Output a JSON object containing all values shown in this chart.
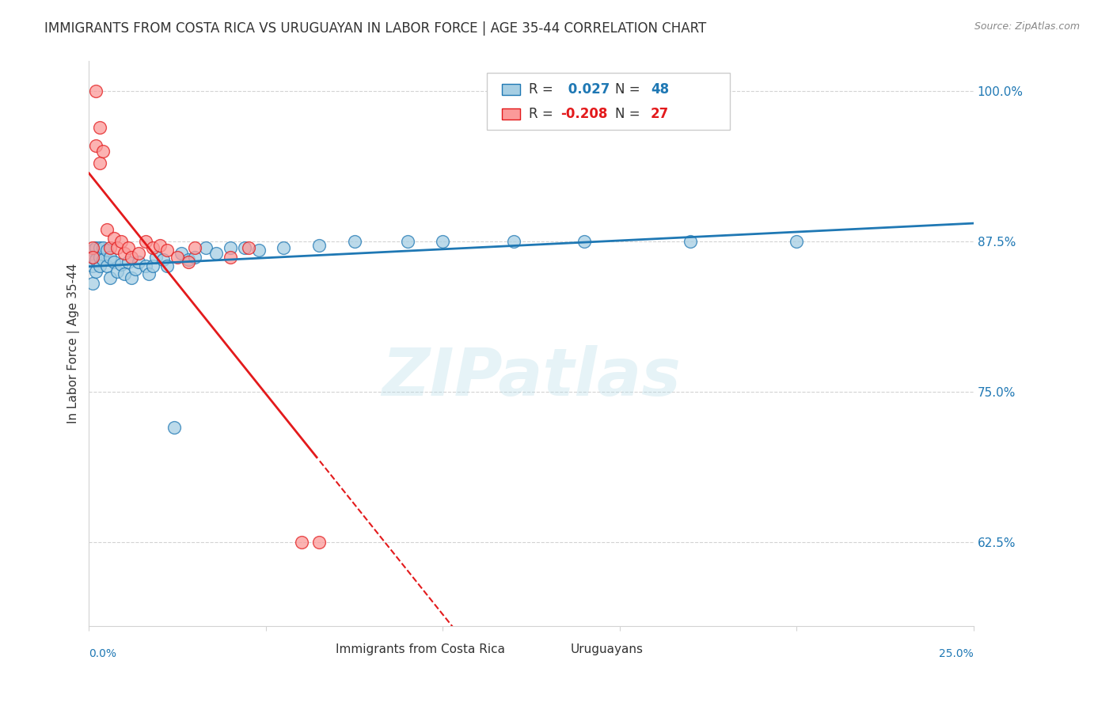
{
  "title": "IMMIGRANTS FROM COSTA RICA VS URUGUAYAN IN LABOR FORCE | AGE 35-44 CORRELATION CHART",
  "source": "Source: ZipAtlas.com",
  "ylabel": "In Labor Force | Age 35-44",
  "color_blue": "#a6cee3",
  "color_pink": "#fb9a99",
  "color_blue_line": "#1f78b4",
  "color_pink_line": "#e31a1c",
  "xmin": 0.0,
  "xmax": 0.25,
  "ymin": 0.555,
  "ymax": 1.025,
  "watermark": "ZIPatlas",
  "blue_x": [
    0.001,
    0.001,
    0.001,
    0.001,
    0.002,
    0.002,
    0.002,
    0.003,
    0.003,
    0.003,
    0.004,
    0.004,
    0.005,
    0.005,
    0.006,
    0.006,
    0.007,
    0.008,
    0.009,
    0.01,
    0.011,
    0.012,
    0.013,
    0.014,
    0.016,
    0.017,
    0.018,
    0.019,
    0.021,
    0.022,
    0.024,
    0.026,
    0.028,
    0.03,
    0.033,
    0.036,
    0.04,
    0.044,
    0.048,
    0.055,
    0.065,
    0.075,
    0.09,
    0.1,
    0.12,
    0.14,
    0.17,
    0.2
  ],
  "blue_y": [
    0.868,
    0.862,
    0.855,
    0.84,
    0.87,
    0.86,
    0.85,
    0.87,
    0.862,
    0.855,
    0.87,
    0.86,
    0.868,
    0.855,
    0.862,
    0.845,
    0.858,
    0.85,
    0.856,
    0.848,
    0.858,
    0.845,
    0.852,
    0.858,
    0.855,
    0.848,
    0.855,
    0.862,
    0.86,
    0.855,
    0.72,
    0.865,
    0.86,
    0.862,
    0.87,
    0.865,
    0.87,
    0.87,
    0.868,
    0.87,
    0.872,
    0.875,
    0.875,
    0.875,
    0.875,
    0.875,
    0.875,
    0.875
  ],
  "pink_x": [
    0.001,
    0.001,
    0.002,
    0.002,
    0.003,
    0.003,
    0.004,
    0.005,
    0.006,
    0.007,
    0.008,
    0.009,
    0.01,
    0.011,
    0.012,
    0.014,
    0.016,
    0.018,
    0.02,
    0.022,
    0.025,
    0.028,
    0.03,
    0.04,
    0.045,
    0.06,
    0.065
  ],
  "pink_y": [
    0.87,
    0.862,
    1.0,
    0.955,
    0.97,
    0.94,
    0.95,
    0.885,
    0.87,
    0.878,
    0.87,
    0.875,
    0.865,
    0.87,
    0.862,
    0.865,
    0.875,
    0.87,
    0.872,
    0.868,
    0.862,
    0.858,
    0.87,
    0.862,
    0.87,
    0.625,
    0.625
  ],
  "ytick_vals": [
    0.625,
    0.75,
    0.875,
    1.0
  ],
  "ytick_labels": [
    "62.5%",
    "75.0%",
    "87.5%",
    "100.0%"
  ],
  "xtick_vals": [
    0.0,
    0.05,
    0.1,
    0.15,
    0.2,
    0.25
  ],
  "legend_blue_r": " 0.027",
  "legend_blue_n": "48",
  "legend_pink_r": "-0.208",
  "legend_pink_n": "27"
}
